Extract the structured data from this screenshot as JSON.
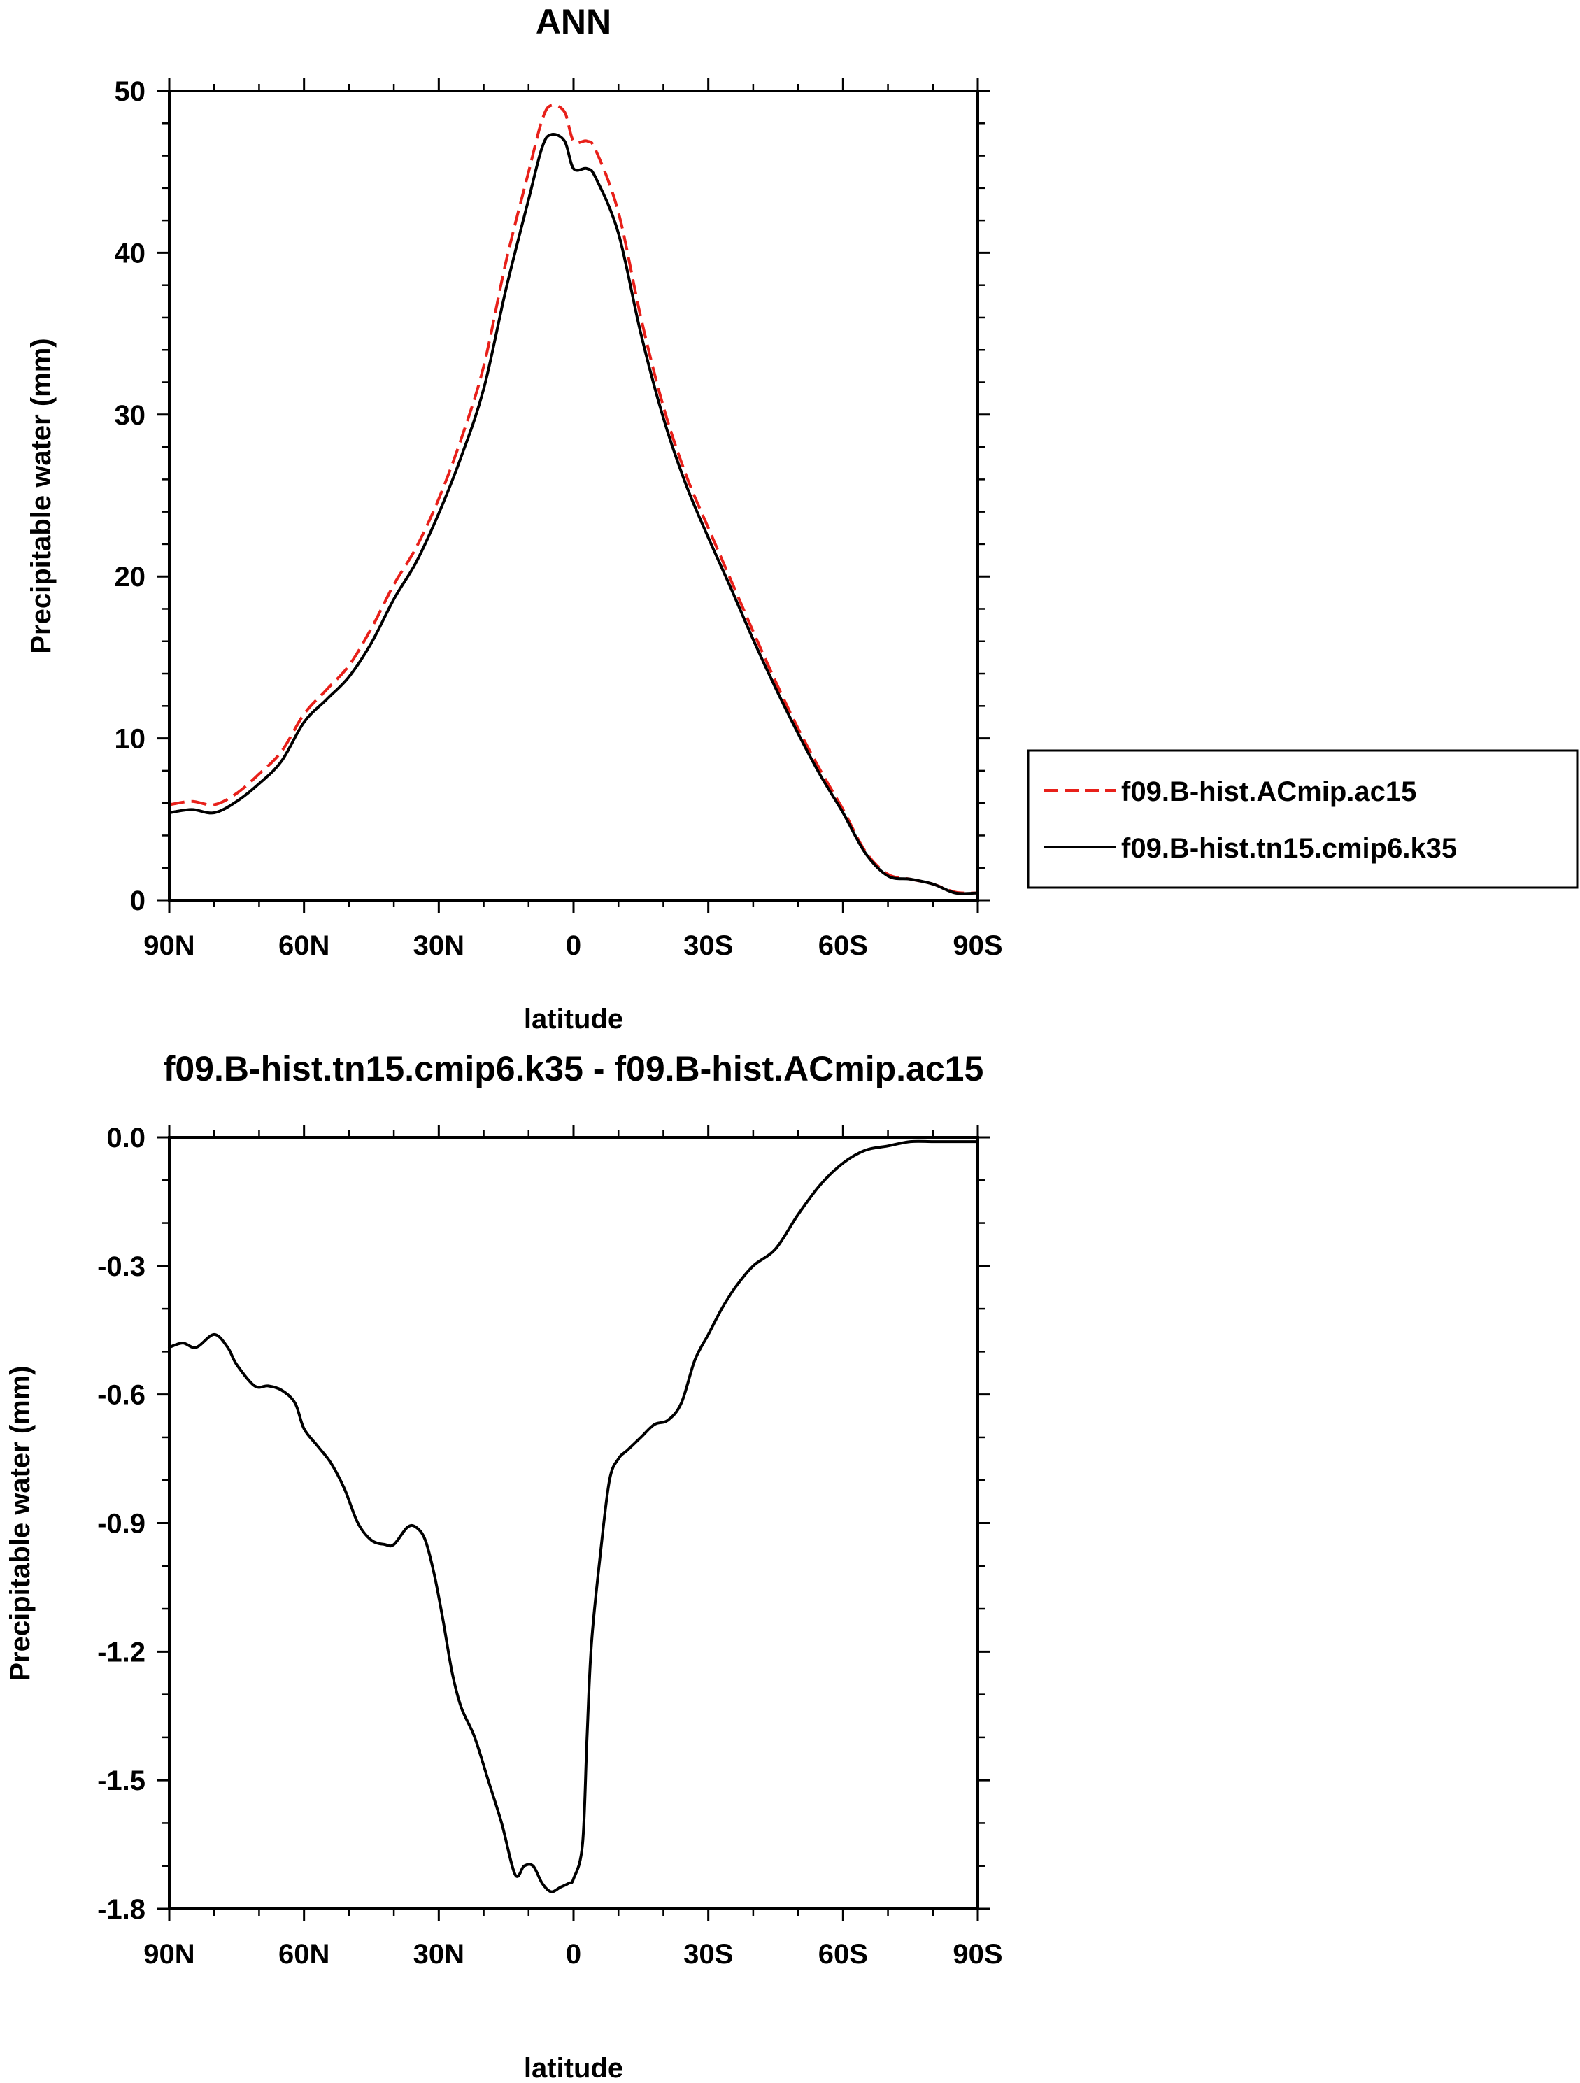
{
  "chart_data": [
    {
      "type": "line",
      "title": "ANN",
      "xlabel": "latitude",
      "ylabel": "Precipitable water (mm)",
      "xticks": [
        "90N",
        "60N",
        "30N",
        "0",
        "30S",
        "60S",
        "90S"
      ],
      "yticks": [
        "0",
        "10",
        "20",
        "30",
        "40",
        "50"
      ],
      "xlim": [
        90,
        -90
      ],
      "ylim": [
        0,
        50
      ],
      "legend_position": "right",
      "series": [
        {
          "name": "f09.B-hist.ACmip.ac15",
          "color": "#e8201a",
          "dash": "dashed",
          "x": [
            90,
            85,
            80,
            75,
            70,
            65,
            60,
            55,
            50,
            45,
            40,
            35,
            30,
            25,
            20,
            15,
            10,
            7,
            5,
            2,
            0,
            -3,
            -5,
            -10,
            -15,
            -20,
            -25,
            -30,
            -35,
            -40,
            -45,
            -50,
            -55,
            -60,
            -65,
            -70,
            -75,
            -80,
            -85,
            -90
          ],
          "y": [
            5.9,
            6.1,
            5.9,
            6.6,
            7.8,
            9.2,
            11.5,
            13.0,
            14.5,
            16.8,
            19.5,
            21.8,
            24.8,
            28.5,
            33.0,
            39.5,
            45.0,
            48.2,
            49.1,
            48.7,
            46.9,
            46.9,
            46.3,
            42.5,
            36.0,
            30.5,
            26.3,
            23.0,
            19.8,
            16.6,
            13.5,
            10.6,
            8.0,
            5.6,
            3.0,
            1.6,
            1.3,
            1.0,
            0.5,
            0.45
          ]
        },
        {
          "name": "f09.B-hist.tn15.cmip6.k35",
          "color": "#000000",
          "dash": "solid",
          "x": [
            90,
            85,
            80,
            75,
            70,
            65,
            60,
            55,
            50,
            45,
            40,
            35,
            30,
            25,
            20,
            15,
            10,
            7,
            5,
            2,
            0,
            -3,
            -5,
            -10,
            -15,
            -20,
            -25,
            -30,
            -35,
            -40,
            -45,
            -50,
            -55,
            -60,
            -65,
            -70,
            -75,
            -80,
            -85,
            -90
          ],
          "y": [
            5.4,
            5.6,
            5.4,
            6.1,
            7.2,
            8.6,
            11.0,
            12.4,
            13.8,
            15.9,
            18.6,
            20.9,
            23.9,
            27.4,
            31.6,
            37.8,
            43.3,
            46.5,
            47.3,
            46.9,
            45.2,
            45.2,
            44.6,
            41.2,
            35.0,
            29.8,
            25.7,
            22.4,
            19.3,
            16.1,
            13.1,
            10.3,
            7.7,
            5.4,
            2.9,
            1.5,
            1.3,
            1.0,
            0.45,
            0.45
          ]
        }
      ]
    },
    {
      "type": "line",
      "title": "f09.B-hist.tn15.cmip6.k35 - f09.B-hist.ACmip.ac15",
      "xlabel": "latitude",
      "ylabel": "Precipitable water (mm)",
      "xticks": [
        "90N",
        "60N",
        "30N",
        "0",
        "30S",
        "60S",
        "90S"
      ],
      "yticks": [
        "0.0",
        "-0.3",
        "-0.6",
        "-0.9",
        "-1.2",
        "-1.5",
        "-1.8"
      ],
      "xlim": [
        90,
        -90
      ],
      "ylim": [
        -1.8,
        0.0
      ],
      "series": [
        {
          "color": "#000000",
          "dash": "solid",
          "x": [
            90,
            87,
            84,
            80,
            77,
            75,
            71,
            68,
            65,
            62,
            60,
            57,
            54,
            51,
            48,
            45,
            42,
            40,
            37,
            35,
            33,
            31,
            29,
            27,
            25,
            22,
            19,
            16,
            13,
            11,
            9,
            7,
            5,
            3,
            1,
            0,
            -2,
            -3,
            -4,
            -6,
            -8,
            -10,
            -12,
            -15,
            -18,
            -21,
            -24,
            -27,
            -30,
            -33,
            -36,
            -40,
            -45,
            -50,
            -55,
            -60,
            -65,
            -70,
            -75,
            -80,
            -85,
            -90
          ],
          "y": [
            -0.49,
            -0.48,
            -0.49,
            -0.46,
            -0.49,
            -0.53,
            -0.58,
            -0.58,
            -0.59,
            -0.62,
            -0.68,
            -0.72,
            -0.76,
            -0.82,
            -0.9,
            -0.94,
            -0.95,
            -0.95,
            -0.91,
            -0.91,
            -0.94,
            -1.02,
            -1.13,
            -1.25,
            -1.33,
            -1.4,
            -1.5,
            -1.6,
            -1.72,
            -1.7,
            -1.7,
            -1.74,
            -1.76,
            -1.75,
            -1.74,
            -1.73,
            -1.65,
            -1.4,
            -1.18,
            -0.97,
            -0.8,
            -0.75,
            -0.73,
            -0.7,
            -0.67,
            -0.66,
            -0.62,
            -0.52,
            -0.46,
            -0.4,
            -0.35,
            -0.3,
            -0.26,
            -0.18,
            -0.11,
            -0.06,
            -0.03,
            -0.02,
            -0.01,
            -0.01,
            -0.01,
            -0.01
          ]
        }
      ]
    }
  ]
}
